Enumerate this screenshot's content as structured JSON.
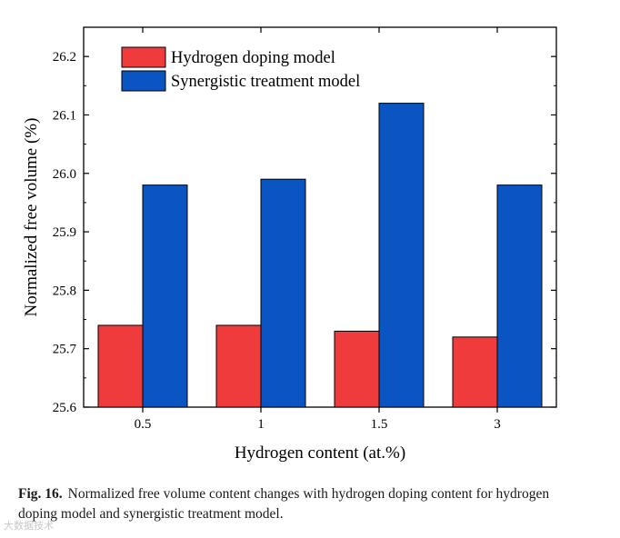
{
  "chart_data": {
    "type": "bar",
    "categories": [
      "0.5",
      "1",
      "1.5",
      "3"
    ],
    "series": [
      {
        "name": "Hydrogen doping model",
        "color": "#ef3b3b",
        "values": [
          25.74,
          25.74,
          25.73,
          25.72
        ]
      },
      {
        "name": "Synergistic treatment model",
        "color": "#0b55c3",
        "values": [
          25.98,
          25.99,
          26.12,
          25.98
        ]
      }
    ],
    "title": "",
    "xlabel": "Hydrogen content (at.%)",
    "ylabel": "Normalized free volume (%)",
    "ylim": [
      25.6,
      26.25
    ],
    "yticks": [
      "25.6",
      "25.7",
      "25.8",
      "25.9",
      "26.0",
      "26.1",
      "26.2"
    ],
    "legend_position": "top-left"
  },
  "caption": {
    "label": "Fig. 16.",
    "text": "Normalized free volume content changes with hydrogen doping content for hydrogen doping model and synergistic treatment model."
  },
  "watermark": "大数据技术"
}
